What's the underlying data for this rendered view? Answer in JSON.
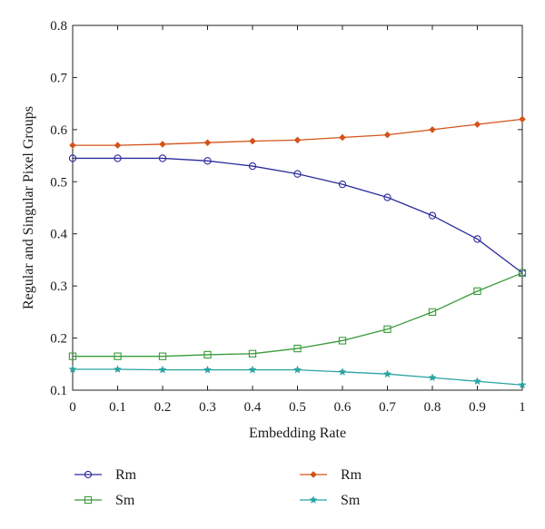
{
  "chart_data": {
    "type": "line",
    "xlabel": "Embedding Rate",
    "ylabel": "Regular and Singular Pixel Groups",
    "xlim": [
      0,
      1
    ],
    "ylim": [
      0.1,
      0.8
    ],
    "x_ticks": [
      "0",
      "0.1",
      "0.2",
      "0.3",
      "0.4",
      "0.5",
      "0.6",
      "0.7",
      "0.8",
      "0.9",
      "1"
    ],
    "y_ticks": [
      "0.1",
      "0.2",
      "0.3",
      "0.4",
      "0.5",
      "0.6",
      "0.7",
      "0.8"
    ],
    "grid": false,
    "legend_position": "bottom",
    "x": [
      0,
      0.1,
      0.2,
      0.3,
      0.4,
      0.5,
      0.6,
      0.7,
      0.8,
      0.9,
      1.0
    ],
    "series": [
      {
        "name": "Rm",
        "color": "#2b2b9c",
        "marker": "circle",
        "values": [
          0.545,
          0.545,
          0.545,
          0.54,
          0.53,
          0.515,
          0.495,
          0.47,
          0.435,
          0.39,
          0.325
        ]
      },
      {
        "name": "Sm",
        "color": "#3a9a3a",
        "marker": "square",
        "values": [
          0.165,
          0.165,
          0.165,
          0.168,
          0.17,
          0.18,
          0.195,
          0.217,
          0.25,
          0.29,
          0.325
        ]
      },
      {
        "name": "Rm",
        "color": "#d4531a",
        "marker": "diamond",
        "values": [
          0.57,
          0.57,
          0.572,
          0.575,
          0.578,
          0.58,
          0.585,
          0.59,
          0.6,
          0.61,
          0.62
        ]
      },
      {
        "name": "Sm",
        "color": "#2aa3a3",
        "marker": "star",
        "values": [
          0.14,
          0.14,
          0.139,
          0.139,
          0.139,
          0.139,
          0.135,
          0.131,
          0.124,
          0.117,
          0.11
        ]
      }
    ]
  }
}
